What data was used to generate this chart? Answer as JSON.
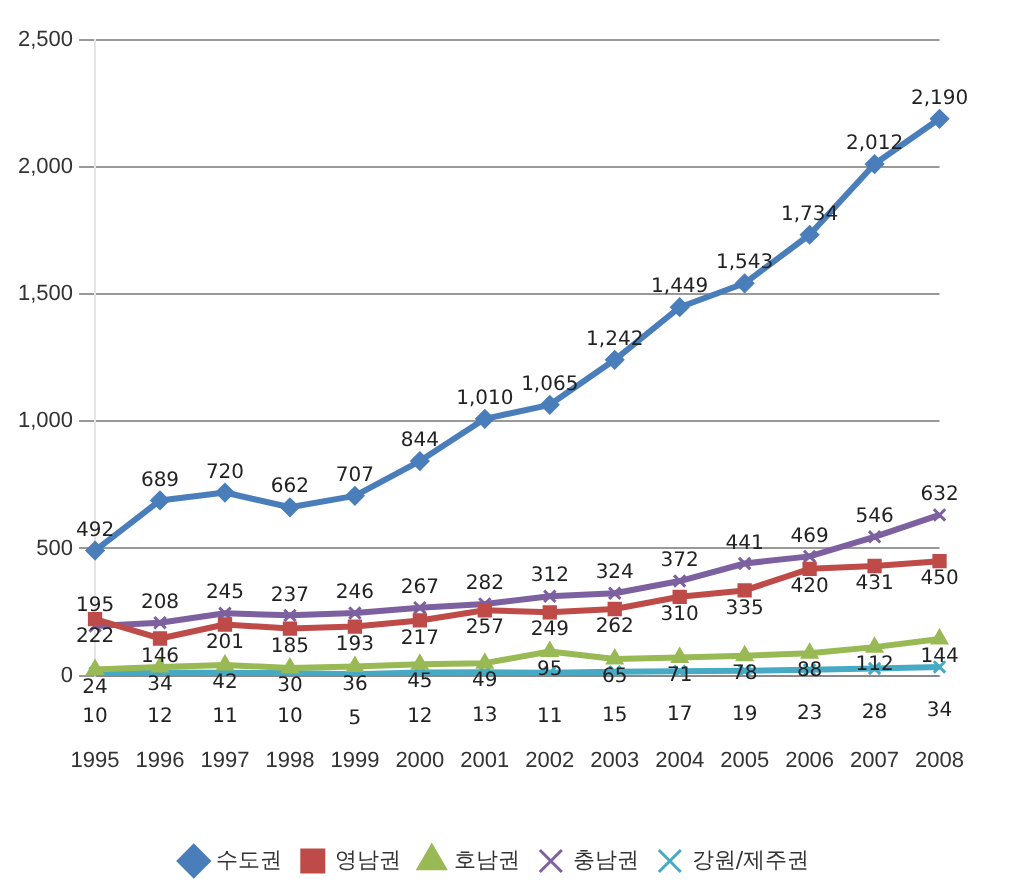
{
  "chart_data": {
    "type": "line",
    "categories": [
      "1995",
      "1996",
      "1997",
      "1998",
      "1999",
      "2000",
      "2001",
      "2002",
      "2003",
      "2004",
      "2005",
      "2006",
      "2007",
      "2008"
    ],
    "series": [
      {
        "name": "수도권",
        "color": "#4a7ebb",
        "marker": "diamond",
        "values": [
          492,
          689,
          720,
          662,
          707,
          844,
          1010,
          1065,
          1242,
          1449,
          1543,
          1734,
          2012,
          2190
        ],
        "value_labels": [
          "492",
          "689",
          "720",
          "662",
          "707",
          "844",
          "1,010",
          "1,065",
          "1,242",
          "1,449",
          "1,543",
          "1,734",
          "2,012",
          "2,190"
        ]
      },
      {
        "name": "영남권",
        "color": "#be4b48",
        "marker": "square",
        "values": [
          222,
          146,
          201,
          185,
          193,
          217,
          257,
          249,
          262,
          310,
          335,
          420,
          431,
          450
        ],
        "value_labels": [
          "222",
          "146",
          "201",
          "185",
          "193",
          "217",
          "257",
          "249",
          "262",
          "310",
          "335",
          "420",
          "431",
          "450"
        ]
      },
      {
        "name": "호남권",
        "color": "#98b954",
        "marker": "triangle",
        "values": [
          24,
          34,
          42,
          30,
          36,
          45,
          49,
          95,
          65,
          71,
          78,
          88,
          112,
          144
        ],
        "value_labels": [
          "24",
          "34",
          "42",
          "30",
          "36",
          "45",
          "49",
          "95",
          "65",
          "71",
          "78",
          "88",
          "112",
          "144"
        ]
      },
      {
        "name": "충남권",
        "color": "#7d60a0",
        "marker": "cross",
        "values": [
          195,
          208,
          245,
          237,
          246,
          267,
          282,
          312,
          324,
          372,
          441,
          469,
          546,
          632
        ],
        "value_labels": [
          "195",
          "208",
          "245",
          "237",
          "246",
          "267",
          "282",
          "312",
          "324",
          "372",
          "441",
          "469",
          "546",
          "632"
        ]
      },
      {
        "name": "강원/제주권",
        "color": "#46aac5",
        "marker": "cross",
        "values": [
          10,
          12,
          11,
          10,
          5,
          12,
          13,
          11,
          15,
          17,
          19,
          23,
          28,
          34
        ],
        "value_labels": [
          "10",
          "12",
          "11",
          "10",
          "5",
          "12",
          "13",
          "11",
          "15",
          "17",
          "19",
          "23",
          "28",
          "34"
        ]
      }
    ],
    "ylim": [
      0,
      2500
    ],
    "yticks": [
      {
        "value": 0,
        "label": "0"
      },
      {
        "value": 500,
        "label": "500"
      },
      {
        "value": 1000,
        "label": "1,000"
      },
      {
        "value": 1500,
        "label": "1,500"
      },
      {
        "value": 2000,
        "label": "2,000"
      },
      {
        "value": 2500,
        "label": "2,500"
      }
    ],
    "grid": "y",
    "legend": "bottom"
  }
}
